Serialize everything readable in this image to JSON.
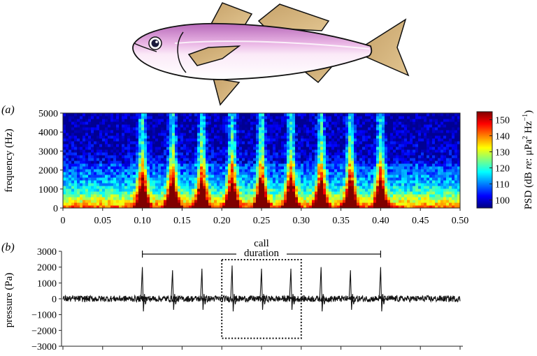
{
  "chart_data": [
    {
      "type": "heatmap",
      "panel_label": "(a)",
      "ylabel": "frequency (Hz)",
      "xlim": [
        0,
        0.5
      ],
      "ylim": [
        0,
        5000
      ],
      "xticks": [
        "0",
        "0.05",
        "0.10",
        "0.15",
        "0.20",
        "0.25",
        "0.30",
        "0.35",
        "0.40",
        "0.45",
        "0.50"
      ],
      "yticks": [
        "0",
        "1000",
        "2000",
        "3000",
        "4000",
        "5000"
      ],
      "pulse_times": [
        0.1,
        0.138,
        0.175,
        0.213,
        0.25,
        0.287,
        0.325,
        0.362,
        0.4
      ],
      "colorbar": {
        "label_parts": [
          "PSD (dB ",
          "re",
          ": μPa",
          "2",
          " Hz",
          "−1",
          ")"
        ],
        "range": [
          95,
          155
        ],
        "ticks": [
          "100",
          "110",
          "120",
          "130",
          "140",
          "150"
        ]
      },
      "colormap": [
        "#00007f",
        "#0000ff",
        "#007fff",
        "#00ffff",
        "#7fff7f",
        "#ffff00",
        "#ff7f00",
        "#ff0000",
        "#7f0000"
      ]
    },
    {
      "type": "line",
      "panel_label": "(b)",
      "ylabel": "pressure (Pa)",
      "xlim": [
        0,
        0.5
      ],
      "ylim": [
        -3000,
        3000
      ],
      "yticks": [
        "3000",
        "2000",
        "1000",
        "0",
        "−1000",
        "−2000",
        "−3000"
      ],
      "pulse_times": [
        0.1,
        0.138,
        0.175,
        0.213,
        0.25,
        0.287,
        0.325,
        0.362,
        0.4
      ],
      "pulse_peaks": [
        2000,
        1800,
        1900,
        2100,
        1900,
        1900,
        2000,
        1800,
        2000
      ],
      "pulse_troughs": [
        -800,
        -700,
        -700,
        -800,
        -700,
        -700,
        -800,
        -700,
        -800
      ],
      "noise_amplitude": 200,
      "annotation": {
        "lines": [
          "call",
          "duration"
        ],
        "range": [
          0.1,
          0.4
        ]
      },
      "box_range": [
        0.2,
        0.3
      ]
    }
  ]
}
